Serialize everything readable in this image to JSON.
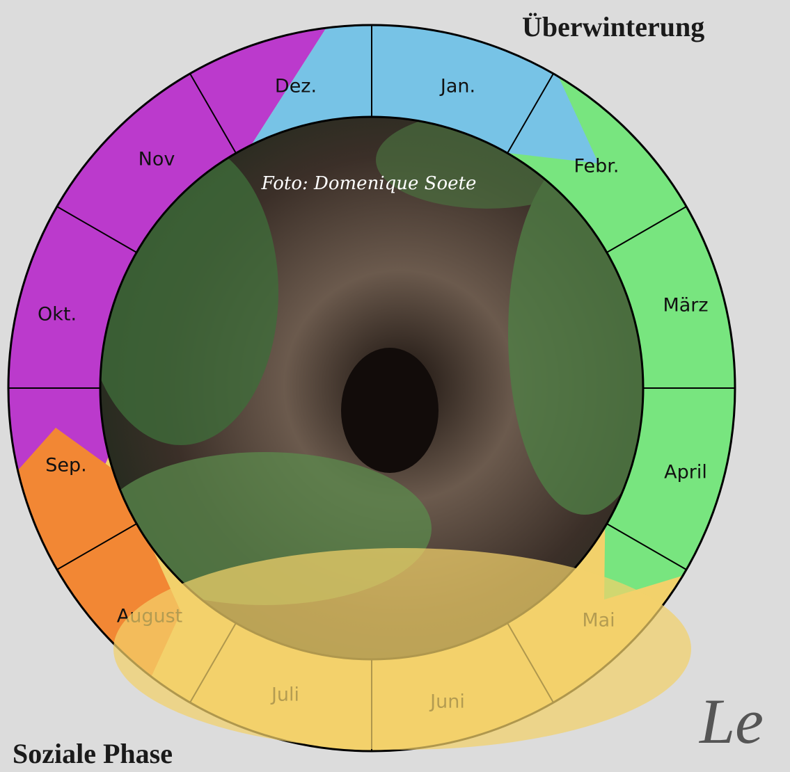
{
  "header": {
    "title": "Überwinterung"
  },
  "footer": {
    "title": "Soziale Phase"
  },
  "side_heading": "Le",
  "photo_credit": "Foto: Domenique Soete",
  "months": [
    "Jan.",
    "Febr.",
    "März",
    "April",
    "Mai",
    "Juni",
    "Juli",
    "August",
    "Sep.",
    "Okt.",
    "Nov",
    "Dez."
  ]
}
